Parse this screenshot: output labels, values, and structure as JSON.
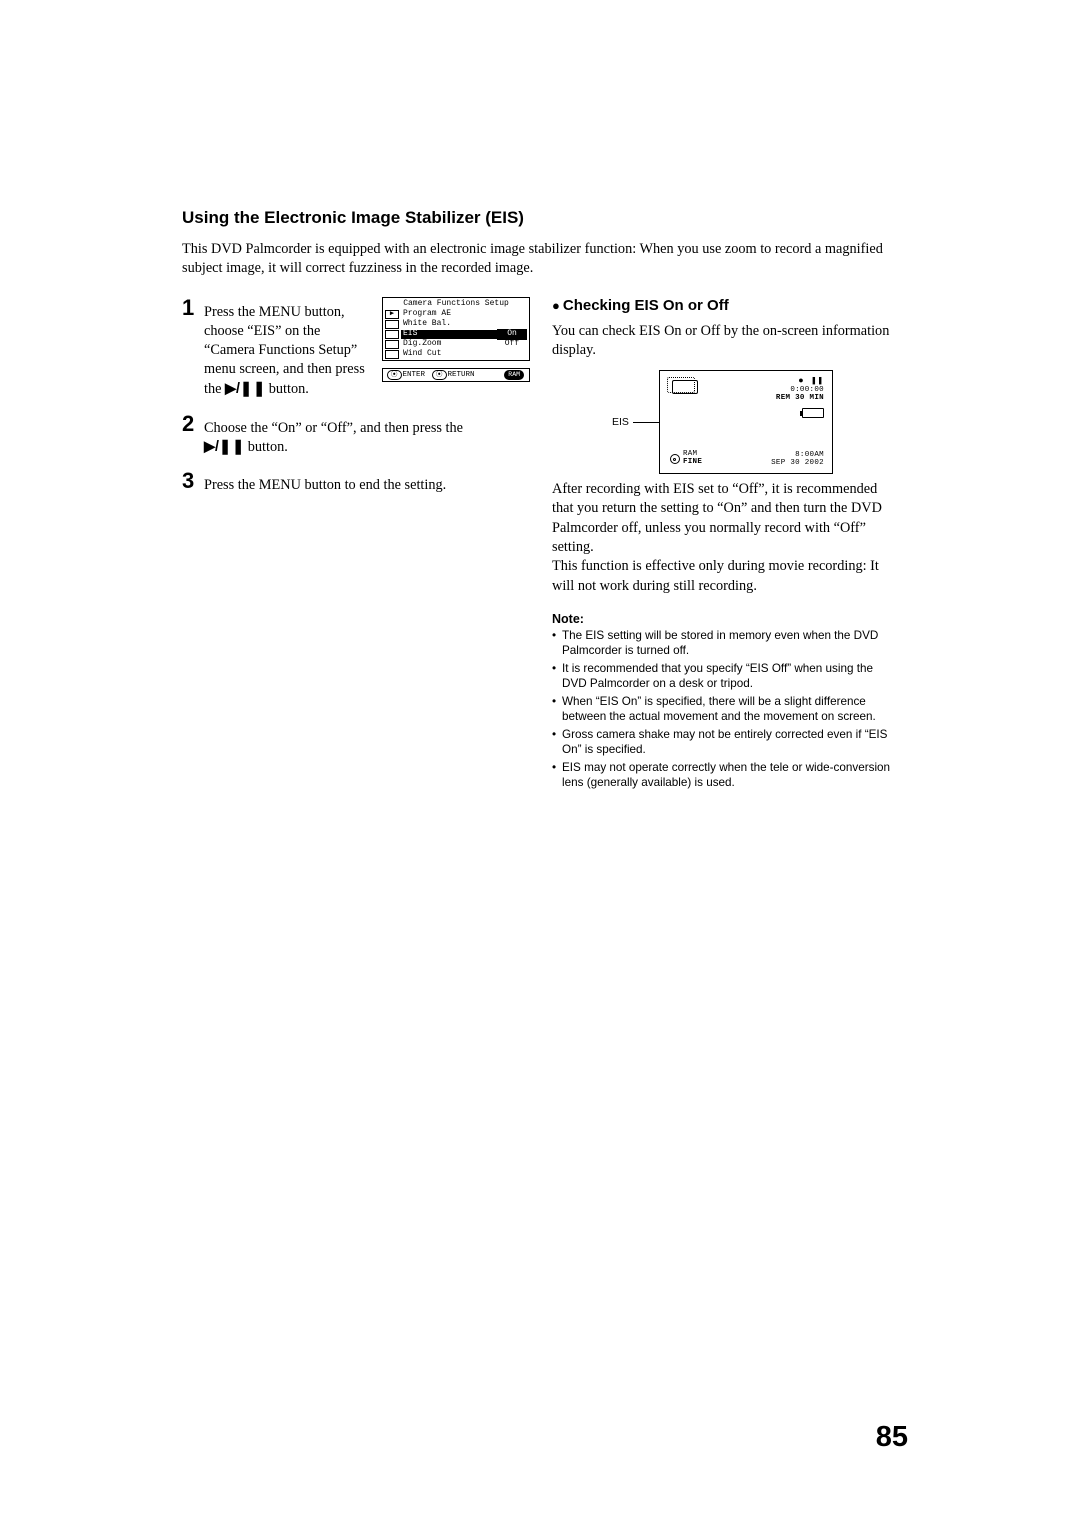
{
  "section_title": "Using the Electronic Image Stabilizer (EIS)",
  "intro": "This DVD Palmcorder is equipped with an electronic image stabilizer function: When you use zoom to record a magnified subject image, it will correct fuzziness in the recorded image.",
  "steps": {
    "s1": {
      "num": "1",
      "text_a": "Press the MENU button, choose “EIS” on the “Camera Functions Setup” menu screen, and then press the ",
      "text_b": " button."
    },
    "s2": {
      "num": "2",
      "text_a": "Choose the “On” or “Off”, and then press the ",
      "text_b": " button."
    },
    "s3": {
      "num": "3",
      "text": "Press the MENU button to end the setting."
    }
  },
  "menu_fig": {
    "title": "Camera Functions Setup",
    "rows": [
      {
        "icon": "▶",
        "label": "Program AE",
        "val": ""
      },
      {
        "icon": "",
        "label": "White Bal.",
        "val": ""
      },
      {
        "icon": "",
        "label": "EIS",
        "val": "On",
        "sel": true,
        "on": true
      },
      {
        "icon": "",
        "label": "Dig.Zoom",
        "val": "Off"
      },
      {
        "icon": "",
        "label": "Wind Cut",
        "val": ""
      }
    ],
    "footer": {
      "enter": "ENTER",
      "ret": "RETURN",
      "ram": "RAM"
    }
  },
  "right": {
    "subtitle": "Checking EIS On or Off",
    "lead": "You can check EIS On or Off by the on-screen information display.",
    "eis_label": "EIS",
    "screen": {
      "time": "0:00:00",
      "rem": "REM 30 MIN",
      "clock": "8:00AM",
      "date": "SEP 30 2002",
      "ram": "RAM",
      "fine": "FINE"
    },
    "after": "After recording with EIS set to “Off”, it is recommended that you return the setting to “On” and then turn the DVD Palmcorder off, unless you normally record with “Off” setting.\nThis function is effective only during movie recording: It will not work during still recording.",
    "note_hd": "Note:",
    "notes": [
      "The EIS setting will be stored in memory even when the DVD Palmcorder is turned off.",
      "It is recommended that you specify “EIS Off” when using the DVD Palmcorder on a desk or tripod.",
      "When “EIS On” is specified, there will be a slight difference between the actual movement and the movement on screen.",
      "Gross camera shake may not be entirely corrected even if “EIS On” is specified.",
      "EIS may not operate correctly when the tele or wide-conversion lens (generally available) is used."
    ]
  },
  "page_num": "85",
  "play_pause_glyph": "▶/❚ ❚"
}
